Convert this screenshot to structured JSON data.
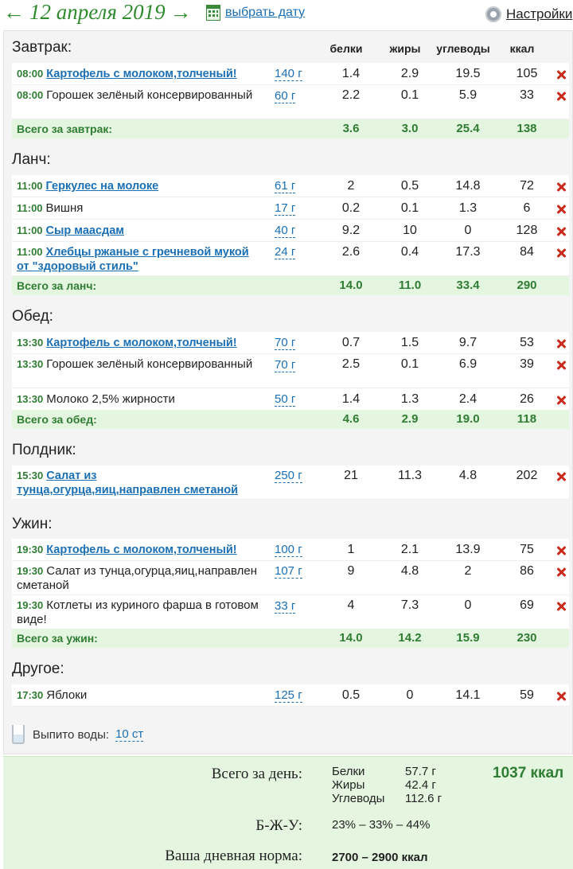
{
  "header": {
    "prev_arrow": "←",
    "date": "12 апреля 2019",
    "next_arrow": "→",
    "pick_date": "выбрать дату",
    "settings": "Настройки"
  },
  "columns": {
    "protein": "белки",
    "fat": "жиры",
    "carbs": "углеводы",
    "kcal": "ккал"
  },
  "meals": {
    "breakfast": {
      "title": "Завтрак:",
      "rows": [
        {
          "time": "08:00",
          "name": "Картофель с молоком,толченый!",
          "grams": "140 г",
          "protein": "1.4",
          "fat": "2.9",
          "carbs": "19.5",
          "kcal": "105"
        },
        {
          "time": "08:00",
          "name": "Горошек зелёный консервированный",
          "grams": "60 г",
          "protein": "2.2",
          "fat": "0.1",
          "carbs": "5.9",
          "kcal": "33"
        }
      ],
      "total": {
        "label": "Всего за завтрак:",
        "protein": "3.6",
        "fat": "3.0",
        "carbs": "25.4",
        "kcal": "138"
      }
    },
    "lunch": {
      "title": "Ланч:",
      "rows": [
        {
          "time": "11:00",
          "name": "Геркулес на молоке",
          "grams": "61 г",
          "protein": "2",
          "fat": "0.5",
          "carbs": "14.8",
          "kcal": "72"
        },
        {
          "time": "11:00",
          "name": "Вишня",
          "grams": "17 г",
          "protein": "0.2",
          "fat": "0.1",
          "carbs": "1.3",
          "kcal": "6"
        },
        {
          "time": "11:00",
          "name": "Сыр маасдам",
          "grams": "40 г",
          "protein": "9.2",
          "fat": "10",
          "carbs": "0",
          "kcal": "128"
        },
        {
          "time": "11:00",
          "name": "Хлебцы ржаные с гречневой мукой от \"здоровый стиль\"",
          "grams": "24 г",
          "protein": "2.6",
          "fat": "0.4",
          "carbs": "17.3",
          "kcal": "84"
        }
      ],
      "total": {
        "label": "Всего за ланч:",
        "protein": "14.0",
        "fat": "11.0",
        "carbs": "33.4",
        "kcal": "290"
      }
    },
    "dinner": {
      "title": "Обед:",
      "rows": [
        {
          "time": "13:30",
          "name": "Картофель с молоком,толченый!",
          "grams": "70 г",
          "protein": "0.7",
          "fat": "1.5",
          "carbs": "9.7",
          "kcal": "53"
        },
        {
          "time": "13:30",
          "name": "Горошек зелёный консервированный",
          "grams": "70 г",
          "protein": "2.5",
          "fat": "0.1",
          "carbs": "6.9",
          "kcal": "39"
        },
        {
          "time": "13:30",
          "name": "Молоко 2,5% жирности",
          "grams": "50 г",
          "protein": "1.4",
          "fat": "1.3",
          "carbs": "2.4",
          "kcal": "26"
        }
      ],
      "total": {
        "label": "Всего за обед:",
        "protein": "4.6",
        "fat": "2.9",
        "carbs": "19.0",
        "kcal": "118"
      }
    },
    "snack": {
      "title": "Полдник:",
      "rows": [
        {
          "time": "15:30",
          "name": "Салат из тунца,огурца,яиц,направлен сметаной",
          "grams": "250 г",
          "protein": "21",
          "fat": "11.3",
          "carbs": "4.8",
          "kcal": "202"
        }
      ]
    },
    "supper": {
      "title": "Ужин:",
      "rows": [
        {
          "time": "19:30",
          "name": "Картофель с молоком,толченый!",
          "grams": "100 г",
          "protein": "1",
          "fat": "2.1",
          "carbs": "13.9",
          "kcal": "75"
        },
        {
          "time": "19:30",
          "name": "Салат из тунца,огурца,яиц,направлен сметаной",
          "grams": "107 г",
          "protein": "9",
          "fat": "4.8",
          "carbs": "2",
          "kcal": "86"
        },
        {
          "time": "19:30",
          "name": "Котлеты из куриного фарша в готовом виде!",
          "grams": "33 г",
          "protein": "4",
          "fat": "7.3",
          "carbs": "0",
          "kcal": "69"
        }
      ],
      "total": {
        "label": "Всего за ужин:",
        "protein": "14.0",
        "fat": "14.2",
        "carbs": "15.9",
        "kcal": "230"
      }
    },
    "other": {
      "title": "Другое:",
      "rows": [
        {
          "time": "17:30",
          "name": "Яблоки",
          "grams": "125 г",
          "protein": "0.5",
          "fat": "0",
          "carbs": "14.1",
          "kcal": "59"
        }
      ]
    }
  },
  "water": {
    "label": "Выпито воды:",
    "value": "10 ст"
  },
  "summary": {
    "day_label": "Всего за день:",
    "protein_label": "Белки",
    "protein_value": "57.7 г",
    "fat_label": "Жиры",
    "fat_value": "42.4 г",
    "carbs_label": "Углеводы",
    "carbs_value": "112.6 г",
    "kcal": "1037 ккал",
    "ratio_label": "Б-Ж-У:",
    "ratio_value": "23% – 33% – 44%",
    "norm_label": "Ваша дневная норма:",
    "norm_value": "2700 – 2900 ккал"
  },
  "colors": {
    "accent_green": "#2e7d32",
    "link_blue": "#1a6fb5",
    "delete_red": "#cc2a1a",
    "total_bg": "#e5f6e0"
  },
  "icons": [
    "calendar-icon",
    "gear-icon",
    "delete-icon",
    "water-glass-icon"
  ]
}
